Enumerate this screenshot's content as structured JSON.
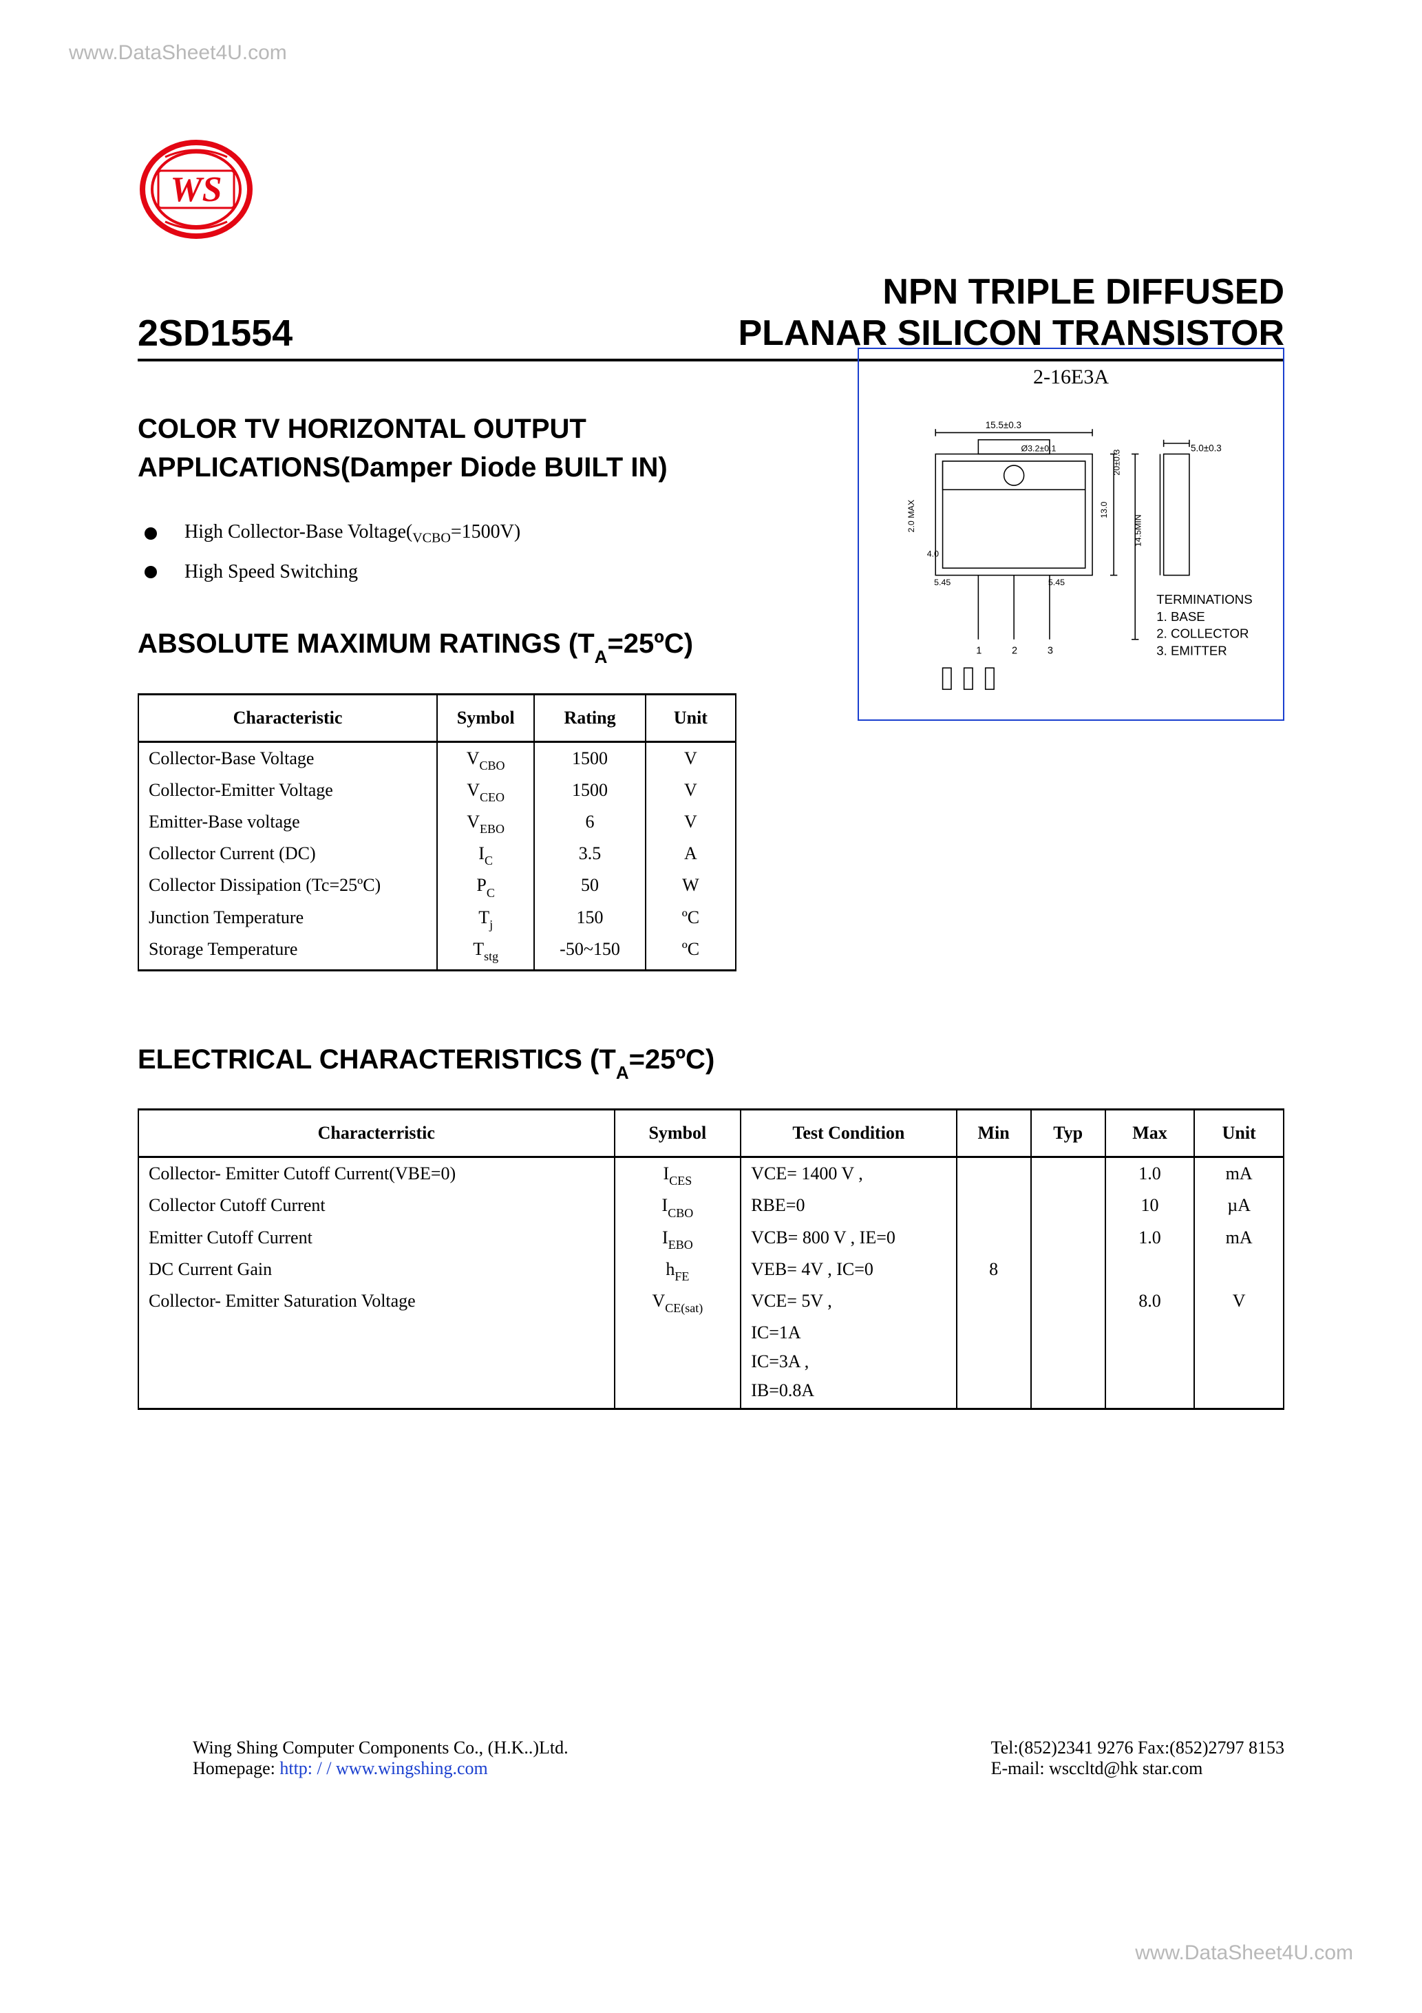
{
  "watermarks": {
    "top": "www.DataSheet4U.com",
    "bottom": "www.DataSheet4U.com"
  },
  "header": {
    "part_number": "2SD1554",
    "title_line1": "NPN    TRIPLE DIFFUSED",
    "title_line2": "PLANAR SILICON TRANSISTOR"
  },
  "application_heading_line1": "COLOR TV HORIZONTAL OUTPUT",
  "application_heading_line2": "APPLICATIONS(Damper Diode BUILT IN)",
  "bullets": [
    {
      "text": "High Collector-Base Voltage(",
      "sub": "VCBO",
      "tail": "=1500V)"
    },
    {
      "text": "High Speed Switching",
      "sub": "",
      "tail": ""
    }
  ],
  "package": {
    "label": "2-16E3A",
    "terminations_label": "TERMINATIONS",
    "t1": "1. BASE",
    "t2": "2. COLLECTOR",
    "t3": "3. EMITTER",
    "border_color": "#1a3fcf"
  },
  "ratings_heading": "ABSOLUTE MAXIMUM RATINGS (T",
  "ratings_heading_sub": "A",
  "ratings_heading_tail": "=25ºC)",
  "ratings": {
    "columns": [
      "Characteristic",
      "Symbol",
      "Rating",
      "Unit"
    ],
    "col_widths": [
      "430px",
      "140px",
      "160px",
      "130px"
    ],
    "rows": [
      [
        "Collector-Base Voltage",
        "V",
        "CBO",
        "1500",
        "V"
      ],
      [
        "Collector-Emitter Voltage",
        "V",
        "CEO",
        "1500",
        "V"
      ],
      [
        "Emitter-Base voltage",
        "V",
        "EBO",
        "6",
        "V"
      ],
      [
        "Collector Current (DC)",
        "I",
        "C",
        "3.5",
        "A"
      ],
      [
        "Collector Dissipation (Tc=25ºC)",
        "P",
        "C",
        "50",
        "W"
      ],
      [
        "Junction Temperature",
        "T",
        "j",
        "150",
        "ºC"
      ],
      [
        "Storage Temperature",
        "T",
        "stg",
        "-50~150",
        "ºC"
      ]
    ]
  },
  "elec_heading": "ELECTRICAL CHARACTERISTICS (T",
  "elec_heading_sub": "A",
  "elec_heading_tail": "=25ºC)",
  "elec": {
    "columns": [
      "Characterristic",
      "Symbol",
      "Test Condition",
      "Min",
      "Typ",
      "Max",
      "Unit"
    ],
    "col_widths": [
      "640px",
      "170px",
      "290px",
      "100px",
      "100px",
      "120px",
      "120px"
    ],
    "rows": [
      {
        "char": "Collector- Emitter Cutoff Current(VBE=0)",
        "char_sub": "",
        "sym": "I",
        "sym_sub": "CES",
        "cond": "VCE= 1400 V ,",
        "min": "",
        "typ": "",
        "max": "1.0",
        "unit": "mA"
      },
      {
        "char": "Collector Cutoff Current",
        "char_sub": "",
        "sym": "I",
        "sym_sub": "CBO",
        "cond": "RBE=0",
        "min": "",
        "typ": "",
        "max": "10",
        "unit": "µA"
      },
      {
        "char": "Emitter Cutoff Current",
        "char_sub": "",
        "sym": "I",
        "sym_sub": "EBO",
        "cond": "VCB= 800 V , IE=0",
        "min": "",
        "typ": "",
        "max": "1.0",
        "unit": "mA"
      },
      {
        "char": "DC Current Gain",
        "char_sub": "",
        "sym": "h",
        "sym_sub": "FE",
        "cond": "VEB= 4V ,     IC=0",
        "min": "8",
        "typ": "",
        "max": "",
        "unit": ""
      },
      {
        "char": "Collector- Emitter Saturation Voltage",
        "char_sub": "",
        "sym": "V",
        "sym_sub": "CE(sat)",
        "cond": "VCE= 5V ,",
        "min": "",
        "typ": "",
        "max": "8.0",
        "unit": "V"
      },
      {
        "char": "",
        "char_sub": "",
        "sym": "",
        "sym_sub": "",
        "cond": "IC=1A",
        "min": "",
        "typ": "",
        "max": "",
        "unit": ""
      },
      {
        "char": "",
        "char_sub": "",
        "sym": "",
        "sym_sub": "",
        "cond": "IC=3A ,",
        "min": "",
        "typ": "",
        "max": "",
        "unit": ""
      },
      {
        "char": "",
        "char_sub": "",
        "sym": "",
        "sym_sub": "",
        "cond": "IB=0.8A",
        "min": "",
        "typ": "",
        "max": "",
        "unit": ""
      }
    ]
  },
  "footer": {
    "left_line1": "Wing Shing Computer Components Co., (H.K..)Ltd.",
    "left_line2_prefix": "Homepage:   ",
    "left_line2_link": "http: / / www.wingshing.com",
    "right_line1": "Tel:(852)2341 9276   Fax:(852)2797 8153",
    "right_line2": "E-mail:    wsccltd@hk   star.com"
  },
  "logo": {
    "main": "WS",
    "ring_color": "#e30613",
    "black": "#000000"
  }
}
